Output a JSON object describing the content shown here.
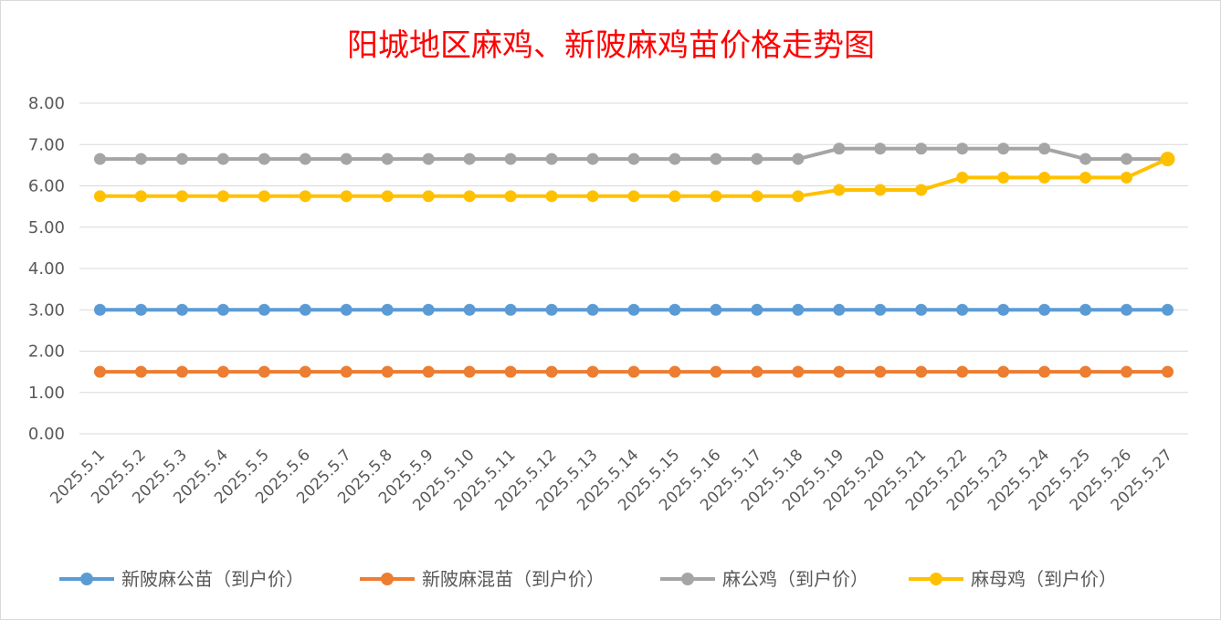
{
  "chart_data": {
    "type": "line",
    "title": "阳城地区麻鸡、新陂麻鸡苗价格走势图",
    "xlabel": "",
    "ylabel": "",
    "ylim": [
      0,
      8
    ],
    "yticks": [
      "0.00",
      "1.00",
      "2.00",
      "3.00",
      "4.00",
      "5.00",
      "6.00",
      "7.00",
      "8.00"
    ],
    "grid": true,
    "legend_position": "bottom",
    "categories": [
      "2025.5.1",
      "2025.5.2",
      "2025.5.3",
      "2025.5.4",
      "2025.5.5",
      "2025.5.6",
      "2025.5.7",
      "2025.5.8",
      "2025.5.9",
      "2025.5.10",
      "2025.5.11",
      "2025.5.12",
      "2025.5.13",
      "2025.5.14",
      "2025.5.15",
      "2025.5.16",
      "2025.5.17",
      "2025.5.18",
      "2025.5.19",
      "2025.5.20",
      "2025.5.21",
      "2025.5.22",
      "2025.5.23",
      "2025.5.24",
      "2025.5.25",
      "2025.5.26",
      "2025.5.27"
    ],
    "series": [
      {
        "name": "新陂麻公苗（到户价）",
        "color": "#5b9bd5",
        "values": [
          3.0,
          3.0,
          3.0,
          3.0,
          3.0,
          3.0,
          3.0,
          3.0,
          3.0,
          3.0,
          3.0,
          3.0,
          3.0,
          3.0,
          3.0,
          3.0,
          3.0,
          3.0,
          3.0,
          3.0,
          3.0,
          3.0,
          3.0,
          3.0,
          3.0,
          3.0,
          3.0
        ]
      },
      {
        "name": "新陂麻混苗（到户价）",
        "color": "#ed7d31",
        "values": [
          1.5,
          1.5,
          1.5,
          1.5,
          1.5,
          1.5,
          1.5,
          1.5,
          1.5,
          1.5,
          1.5,
          1.5,
          1.5,
          1.5,
          1.5,
          1.5,
          1.5,
          1.5,
          1.5,
          1.5,
          1.5,
          1.5,
          1.5,
          1.5,
          1.5,
          1.5,
          1.5
        ]
      },
      {
        "name": "麻公鸡（到户价）",
        "color": "#a5a5a5",
        "values": [
          6.65,
          6.65,
          6.65,
          6.65,
          6.65,
          6.65,
          6.65,
          6.65,
          6.65,
          6.65,
          6.65,
          6.65,
          6.65,
          6.65,
          6.65,
          6.65,
          6.65,
          6.65,
          6.9,
          6.9,
          6.9,
          6.9,
          6.9,
          6.9,
          6.65,
          6.65,
          6.65
        ]
      },
      {
        "name": "麻母鸡（到户价）",
        "color": "#ffc000",
        "values": [
          5.75,
          5.75,
          5.75,
          5.75,
          5.75,
          5.75,
          5.75,
          5.75,
          5.75,
          5.75,
          5.75,
          5.75,
          5.75,
          5.75,
          5.75,
          5.75,
          5.75,
          5.75,
          5.9,
          5.9,
          5.9,
          6.2,
          6.2,
          6.2,
          6.2,
          6.2,
          6.65
        ]
      }
    ]
  }
}
